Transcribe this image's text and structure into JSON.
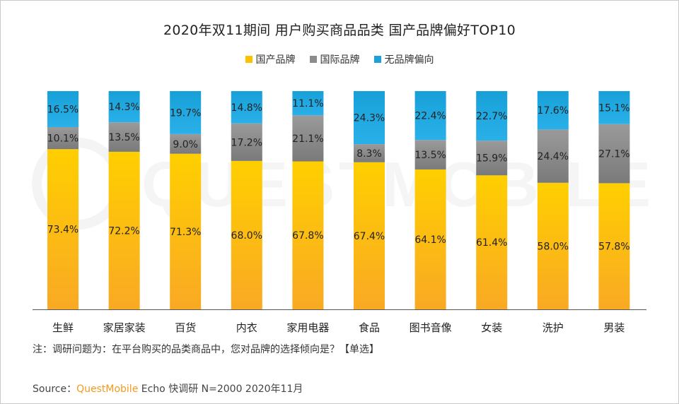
{
  "chart_data": {
    "type": "bar",
    "stacked": true,
    "title": "2020年双11期间 用户购买商品品类 国产品牌偏好TOP10",
    "categories": [
      "生鲜",
      "家居家装",
      "百货",
      "内衣",
      "家用电器",
      "食品",
      "图书音像",
      "女装",
      "洗护",
      "男装"
    ],
    "series": [
      {
        "name": "国产品牌",
        "color": "#fcc200",
        "values": [
          73.4,
          72.2,
          71.3,
          68.0,
          67.8,
          67.4,
          64.1,
          61.4,
          58.0,
          57.8
        ]
      },
      {
        "name": "国际品牌",
        "color": "#8c8c8c",
        "values": [
          10.1,
          13.5,
          9.0,
          17.2,
          21.1,
          8.3,
          13.5,
          15.9,
          24.4,
          27.1
        ]
      },
      {
        "name": "无品牌偏向",
        "color": "#1da1d8",
        "values": [
          16.5,
          14.3,
          19.7,
          14.8,
          11.1,
          24.3,
          22.4,
          22.7,
          17.6,
          15.1
        ]
      }
    ],
    "ylim": [
      0,
      100
    ],
    "value_suffix": "%",
    "legend_position": "top-center"
  },
  "note": "注：调研问题为：在平台购买的品类商品中，您对品牌的选择倾向是？【单选】",
  "source": {
    "prefix": "Source：",
    "brand": "QuestMobile",
    "rest": " Echo 快调研 N=2000 2020年11月"
  },
  "watermark": "QUESTMOBILE"
}
